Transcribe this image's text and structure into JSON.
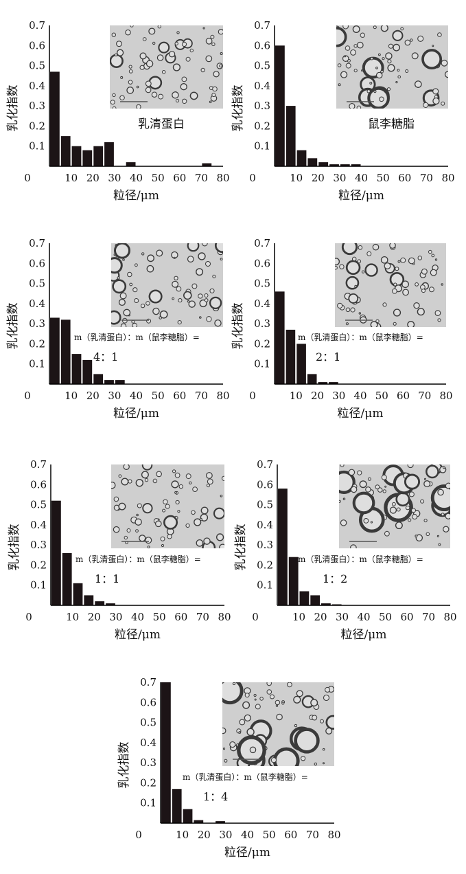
{
  "colors": {
    "bar": "#1c1416",
    "axis": "#000000",
    "micro_bg": "#cfcfcf",
    "droplet_edge": "#3a3a3a",
    "droplet_fill": "#dedede"
  },
  "chart_data": [
    {
      "type": "bar",
      "xlabel": "粒径/μm",
      "ylabel": "乳化指数",
      "xlim": [
        0,
        80
      ],
      "ylim": [
        0,
        0.7
      ],
      "x_ticks": [
        0,
        10,
        20,
        30,
        40,
        50,
        60,
        70,
        80
      ],
      "y_ticks": [
        0.1,
        0.2,
        0.3,
        0.4,
        0.5,
        0.6,
        0.7
      ],
      "y_tick_labels": [
        "0.1",
        "0.2",
        "0.3",
        "0.4",
        "0.5",
        "0.6",
        "0.7"
      ],
      "caption": "乳清蛋白",
      "ratio_formula": "",
      "ratio_value": "",
      "micrograph": "micrograph-image",
      "bars": [
        {
          "x": 2.5,
          "y": 0.47
        },
        {
          "x": 7.5,
          "y": 0.15
        },
        {
          "x": 12.5,
          "y": 0.1
        },
        {
          "x": 17.5,
          "y": 0.08
        },
        {
          "x": 22.5,
          "y": 0.1
        },
        {
          "x": 27.5,
          "y": 0.12
        },
        {
          "x": 37.5,
          "y": 0.02
        },
        {
          "x": 72.5,
          "y": 0.015
        }
      ]
    },
    {
      "type": "bar",
      "xlabel": "粒径/μm",
      "ylabel": "乳化指数",
      "xlim": [
        0,
        80
      ],
      "ylim": [
        0,
        0.7
      ],
      "x_ticks": [
        0,
        10,
        20,
        30,
        40,
        50,
        60,
        70,
        80
      ],
      "y_ticks": [
        0.1,
        0.2,
        0.3,
        0.4,
        0.5,
        0.6,
        0.7
      ],
      "y_tick_labels": [
        "0.1",
        "0.2",
        "0.3",
        "0.4",
        "0.5",
        "0.6",
        "0.7"
      ],
      "caption": "鼠李糖脂",
      "ratio_formula": "",
      "ratio_value": "",
      "micrograph": "micrograph-image",
      "bars": [
        {
          "x": 2.5,
          "y": 0.6
        },
        {
          "x": 7.5,
          "y": 0.3
        },
        {
          "x": 12.5,
          "y": 0.08
        },
        {
          "x": 17.5,
          "y": 0.04
        },
        {
          "x": 22.5,
          "y": 0.02
        },
        {
          "x": 27.5,
          "y": 0.01
        },
        {
          "x": 32.5,
          "y": 0.01
        },
        {
          "x": 37.5,
          "y": 0.01
        }
      ]
    },
    {
      "type": "bar",
      "xlabel": "粒径/μm",
      "ylabel": "乳化指数",
      "xlim": [
        0,
        80
      ],
      "ylim": [
        0,
        0.7
      ],
      "x_ticks": [
        0,
        10,
        20,
        30,
        40,
        50,
        60,
        70,
        80
      ],
      "y_ticks": [
        0.1,
        0.2,
        0.3,
        0.4,
        0.5,
        0.6,
        0.7
      ],
      "y_tick_labels": [
        "0.1",
        "0.2",
        "0.3",
        "0.4",
        "0.5",
        "0.6",
        "0.7"
      ],
      "caption": "",
      "ratio_formula": "m（乳清蛋白）：m（鼠李糖脂）=",
      "ratio_value": "4：1",
      "micrograph": "micrograph-image",
      "bars": [
        {
          "x": 2.5,
          "y": 0.33
        },
        {
          "x": 7.5,
          "y": 0.32
        },
        {
          "x": 12.5,
          "y": 0.15
        },
        {
          "x": 17.5,
          "y": 0.12
        },
        {
          "x": 22.5,
          "y": 0.05
        },
        {
          "x": 27.5,
          "y": 0.02
        },
        {
          "x": 32.5,
          "y": 0.02
        }
      ]
    },
    {
      "type": "bar",
      "xlabel": "粒径/μm",
      "ylabel": "乳化指数",
      "xlim": [
        0,
        80
      ],
      "ylim": [
        0,
        0.7
      ],
      "x_ticks": [
        0,
        10,
        20,
        30,
        40,
        50,
        60,
        70,
        80
      ],
      "y_ticks": [
        0.1,
        0.2,
        0.3,
        0.4,
        0.5,
        0.6,
        0.7
      ],
      "y_tick_labels": [
        "0.1",
        "0.2",
        "0.3",
        "0.4",
        "0.5",
        "0.6",
        "0.7"
      ],
      "caption": "",
      "ratio_formula": "m（乳清蛋白）：m（鼠李糖脂）=",
      "ratio_value": "2：1",
      "micrograph": "micrograph-image",
      "bars": [
        {
          "x": 2.5,
          "y": 0.46
        },
        {
          "x": 7.5,
          "y": 0.27
        },
        {
          "x": 12.5,
          "y": 0.2
        },
        {
          "x": 17.5,
          "y": 0.05
        },
        {
          "x": 22.5,
          "y": 0.01
        },
        {
          "x": 27.5,
          "y": 0.01
        }
      ]
    },
    {
      "type": "bar",
      "xlabel": "粒径/μm",
      "ylabel": "乳化指数",
      "xlim": [
        0,
        80
      ],
      "ylim": [
        0,
        0.7
      ],
      "x_ticks": [
        0,
        10,
        20,
        30,
        40,
        50,
        60,
        70,
        80
      ],
      "y_ticks": [
        0.1,
        0.2,
        0.3,
        0.4,
        0.5,
        0.6,
        0.7
      ],
      "y_tick_labels": [
        "0.1",
        "0.2",
        "0.3",
        "0.4",
        "0.5",
        "0.6",
        "0.7"
      ],
      "caption": "",
      "ratio_formula": "m（乳清蛋白）：m（鼠李糖脂）=",
      "ratio_value": "1：1",
      "micrograph": "micrograph-image",
      "bars": [
        {
          "x": 2.5,
          "y": 0.52
        },
        {
          "x": 7.5,
          "y": 0.26
        },
        {
          "x": 12.5,
          "y": 0.11
        },
        {
          "x": 17.5,
          "y": 0.05
        },
        {
          "x": 22.5,
          "y": 0.02
        },
        {
          "x": 27.5,
          "y": 0.01
        }
      ]
    },
    {
      "type": "bar",
      "xlabel": "粒径/μm",
      "ylabel": "乳化指数",
      "xlim": [
        0,
        80
      ],
      "ylim": [
        0,
        0.7
      ],
      "x_ticks": [
        0,
        10,
        20,
        30,
        40,
        50,
        60,
        70,
        80
      ],
      "y_ticks": [
        0.1,
        0.2,
        0.3,
        0.4,
        0.5,
        0.6,
        0.7
      ],
      "y_tick_labels": [
        "0.1",
        "0.2",
        "0.3",
        "0.4",
        "0.5",
        "0.6",
        "0.7"
      ],
      "caption": "",
      "ratio_formula": "m（乳清蛋白）：m（鼠李糖脂）=",
      "ratio_value": "1：2",
      "micrograph": "micrograph-image",
      "bars": [
        {
          "x": 2.5,
          "y": 0.58
        },
        {
          "x": 7.5,
          "y": 0.24
        },
        {
          "x": 12.5,
          "y": 0.07
        },
        {
          "x": 17.5,
          "y": 0.05
        },
        {
          "x": 22.5,
          "y": 0.01
        },
        {
          "x": 27.5,
          "y": 0.005
        }
      ]
    },
    {
      "type": "bar",
      "xlabel": "粒径/μm",
      "ylabel": "乳化指数",
      "xlim": [
        0,
        80
      ],
      "ylim": [
        0,
        0.7
      ],
      "x_ticks": [
        0,
        10,
        20,
        30,
        40,
        50,
        60,
        70,
        80
      ],
      "y_ticks": [
        0.1,
        0.2,
        0.3,
        0.4,
        0.5,
        0.6,
        0.7
      ],
      "y_tick_labels": [
        "0.1",
        "0.2",
        "0.3",
        "0.4",
        "0.5",
        "0.6",
        "0.7"
      ],
      "caption": "",
      "ratio_formula": "m（乳清蛋白）：m（鼠李糖脂）=",
      "ratio_value": "1：4",
      "micrograph": "micrograph-image",
      "bars": [
        {
          "x": 2.5,
          "y": 0.7
        },
        {
          "x": 7.5,
          "y": 0.17
        },
        {
          "x": 12.5,
          "y": 0.07
        },
        {
          "x": 17.5,
          "y": 0.015
        },
        {
          "x": 27.5,
          "y": 0.01
        }
      ]
    }
  ]
}
